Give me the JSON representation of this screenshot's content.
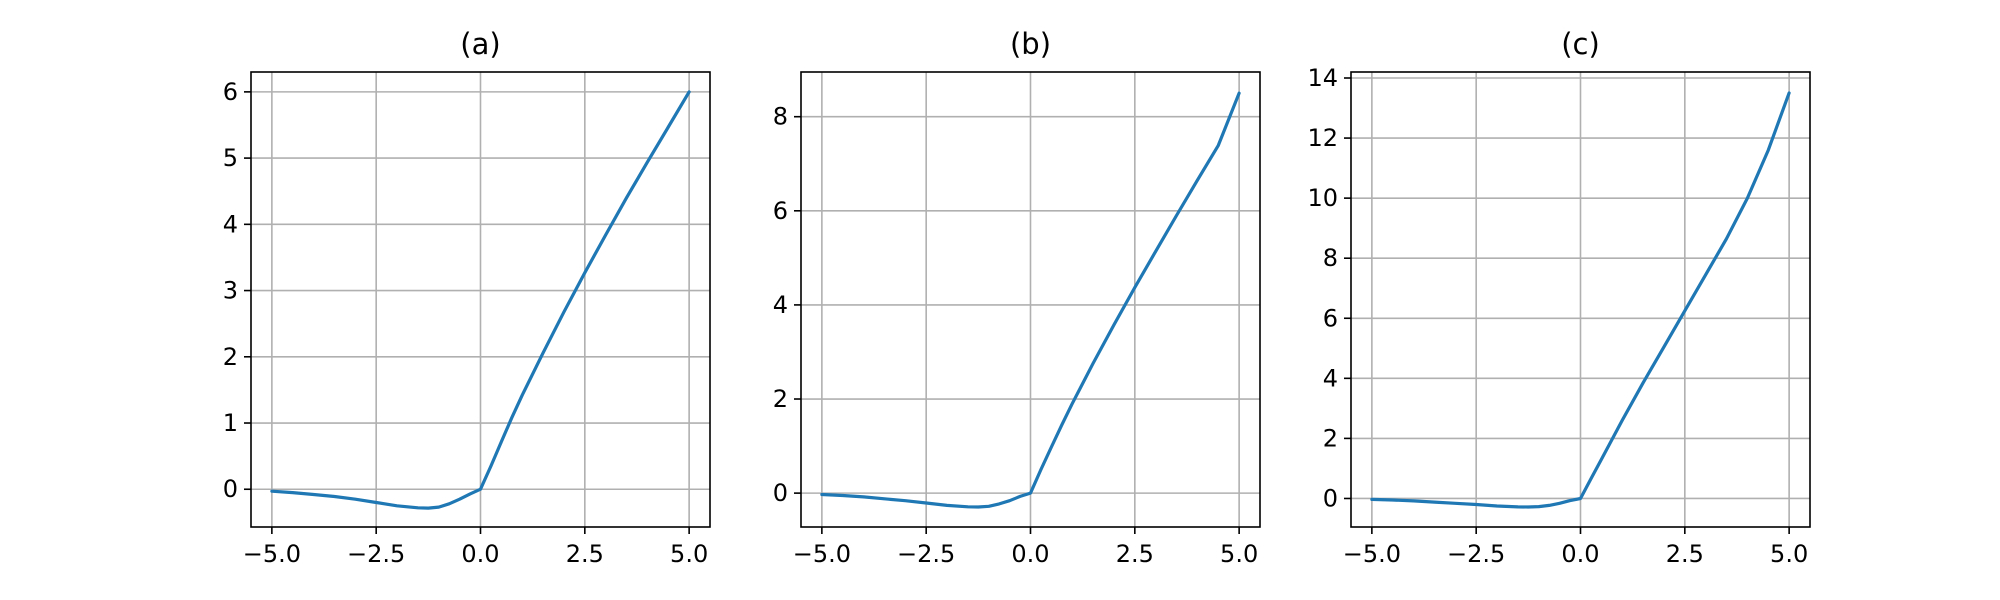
{
  "colors": {
    "series": "#1f77b4",
    "grid": "#b0b0b0",
    "axes": "#000000"
  },
  "chart_data": [
    {
      "type": "line",
      "title": "(a)",
      "xlabel": "",
      "ylabel": "",
      "xlim": [
        -5.5,
        5.5
      ],
      "ylim": [
        -0.57,
        6.3
      ],
      "grid": true,
      "xticks": [
        -5.0,
        -2.5,
        0.0,
        2.5,
        5.0
      ],
      "xtick_labels": [
        "−5.0",
        "−2.5",
        "0.0",
        "2.5",
        "5.0"
      ],
      "yticks": [
        0,
        1,
        2,
        3,
        4,
        5,
        6
      ],
      "ytick_labels": [
        "0",
        "1",
        "2",
        "3",
        "4",
        "5",
        "6"
      ],
      "series": [
        {
          "x": [
            -5.0,
            -4.5,
            -4.0,
            -3.5,
            -3.0,
            -2.5,
            -2.0,
            -1.5,
            -1.25,
            -1.0,
            -0.75,
            -0.5,
            -0.25,
            0.0,
            0.25,
            0.5,
            0.75,
            1.0,
            1.5,
            2.0,
            2.5,
            3.0,
            3.5,
            4.0,
            4.5,
            5.0
          ],
          "y": [
            -0.03,
            -0.05,
            -0.08,
            -0.11,
            -0.15,
            -0.2,
            -0.25,
            -0.28,
            -0.285,
            -0.27,
            -0.22,
            -0.15,
            -0.07,
            0.0,
            0.35,
            0.72,
            1.08,
            1.42,
            2.06,
            2.68,
            3.27,
            3.84,
            4.4,
            4.94,
            5.47,
            6.0
          ]
        }
      ]
    },
    {
      "type": "line",
      "title": "(b)",
      "xlabel": "",
      "ylabel": "",
      "xlim": [
        -5.5,
        5.5
      ],
      "ylim": [
        -0.72,
        8.95
      ],
      "grid": true,
      "xticks": [
        -5.0,
        -2.5,
        0.0,
        2.5,
        5.0
      ],
      "xtick_labels": [
        "−5.0",
        "−2.5",
        "0.0",
        "2.5",
        "5.0"
      ],
      "yticks": [
        0,
        2,
        4,
        6,
        8
      ],
      "ytick_labels": [
        "0",
        "2",
        "4",
        "6",
        "8"
      ],
      "series": [
        {
          "x": [
            -5.0,
            -4.5,
            -4.0,
            -3.5,
            -3.0,
            -2.5,
            -2.0,
            -1.5,
            -1.25,
            -1.0,
            -0.75,
            -0.5,
            -0.25,
            0.0,
            0.25,
            0.5,
            0.75,
            1.0,
            1.5,
            2.0,
            2.5,
            3.0,
            3.5,
            4.0,
            4.5,
            5.0
          ],
          "y": [
            -0.03,
            -0.05,
            -0.08,
            -0.12,
            -0.16,
            -0.21,
            -0.26,
            -0.29,
            -0.295,
            -0.28,
            -0.23,
            -0.16,
            -0.07,
            0.0,
            0.5,
            0.98,
            1.45,
            1.9,
            2.76,
            3.58,
            4.37,
            5.14,
            5.9,
            6.65,
            7.39,
            8.5
          ]
        }
      ]
    },
    {
      "type": "line",
      "title": "(c)",
      "xlabel": "",
      "ylabel": "",
      "xlim": [
        -5.5,
        5.5
      ],
      "ylim": [
        -0.95,
        14.2
      ],
      "grid": true,
      "xticks": [
        -5.0,
        -2.5,
        0.0,
        2.5,
        5.0
      ],
      "xtick_labels": [
        "−5.0",
        "−2.5",
        "0.0",
        "2.5",
        "5.0"
      ],
      "yticks": [
        0,
        2,
        4,
        6,
        8,
        10,
        12,
        14
      ],
      "ytick_labels": [
        "0",
        "2",
        "4",
        "6",
        "8",
        "10",
        "12",
        "14"
      ],
      "series": [
        {
          "x": [
            -5.0,
            -4.5,
            -4.0,
            -3.5,
            -3.0,
            -2.5,
            -2.0,
            -1.5,
            -1.25,
            -1.0,
            -0.75,
            -0.5,
            -0.25,
            0.0,
            0.25,
            0.5,
            0.75,
            1.0,
            1.5,
            2.0,
            2.5,
            3.0,
            3.5,
            4.0,
            4.5,
            5.0
          ],
          "y": [
            -0.03,
            -0.05,
            -0.08,
            -0.12,
            -0.16,
            -0.2,
            -0.25,
            -0.28,
            -0.285,
            -0.27,
            -0.23,
            -0.16,
            -0.07,
            0.0,
            0.65,
            1.3,
            1.95,
            2.6,
            3.85,
            5.05,
            6.25,
            7.45,
            8.65,
            10.0,
            11.6,
            13.5
          ]
        }
      ]
    }
  ]
}
